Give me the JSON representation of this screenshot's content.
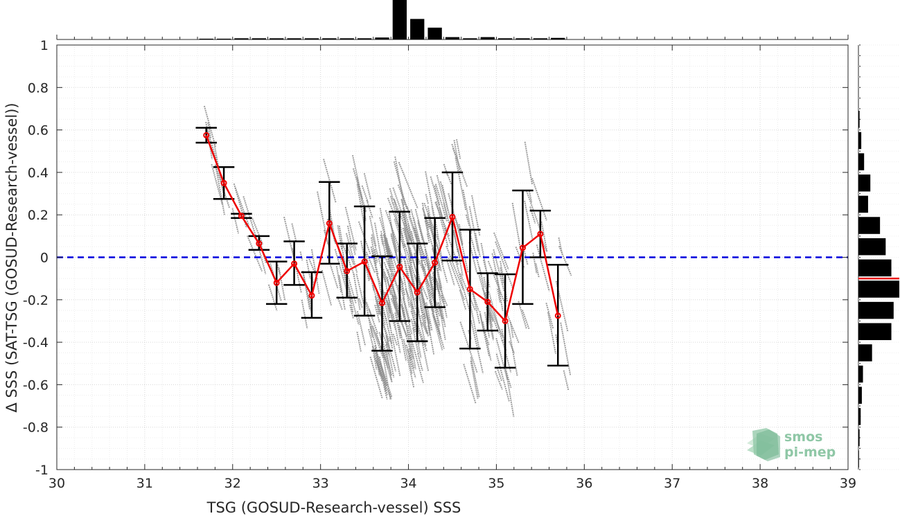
{
  "chart_data": {
    "type": "scatter",
    "title": "",
    "xlabel": "TSG (GOSUD-Research-vessel) SSS",
    "ylabel": "Δ SSS (SAT-TSG (GOSUD-Research-vessel))",
    "xlim": [
      30,
      39
    ],
    "ylim": [
      -1,
      1
    ],
    "xticks": [
      30,
      31,
      32,
      33,
      34,
      35,
      36,
      37,
      38,
      39
    ],
    "yticks": [
      -1,
      -0.8,
      -0.6,
      -0.4,
      -0.2,
      0,
      0.2,
      0.4,
      0.6,
      0.8,
      1
    ],
    "grid": true,
    "reference_line": {
      "y": 0,
      "color": "#0000dd",
      "style": "dashed"
    },
    "binned_mean": {
      "color": "#ee0000",
      "x": [
        31.7,
        31.9,
        32.1,
        32.3,
        32.5,
        32.7,
        32.9,
        33.1,
        33.3,
        33.5,
        33.7,
        33.9,
        34.1,
        34.3,
        34.5,
        34.7,
        34.9,
        35.1,
        35.3,
        35.5,
        35.7
      ],
      "y": [
        0.575,
        0.35,
        0.195,
        0.065,
        -0.12,
        -0.03,
        -0.18,
        0.16,
        -0.065,
        -0.02,
        -0.215,
        -0.045,
        -0.165,
        -0.025,
        0.19,
        -0.15,
        -0.21,
        -0.3,
        0.045,
        0.11,
        -0.275
      ],
      "lower": [
        0.54,
        0.275,
        0.185,
        0.035,
        -0.22,
        -0.13,
        -0.285,
        -0.03,
        -0.19,
        -0.275,
        -0.44,
        -0.3,
        -0.395,
        -0.235,
        -0.015,
        -0.43,
        -0.345,
        -0.52,
        -0.22,
        0.0,
        -0.51
      ],
      "upper": [
        0.61,
        0.425,
        0.205,
        0.1,
        -0.02,
        0.075,
        -0.07,
        0.355,
        0.065,
        0.24,
        0.005,
        0.215,
        0.065,
        0.185,
        0.4,
        0.13,
        -0.075,
        -0.08,
        0.315,
        0.22,
        -0.035
      ]
    },
    "scatter_color": "#8c8c8c",
    "top_histogram": {
      "bin_centers": [
        30.1,
        30.3,
        30.5,
        30.7,
        30.9,
        31.1,
        31.3,
        31.5,
        31.7,
        31.9,
        32.1,
        32.3,
        32.5,
        32.7,
        32.9,
        33.1,
        33.3,
        33.5,
        33.7,
        33.9,
        34.1,
        34.3,
        34.5,
        34.7,
        34.9,
        35.1,
        35.3,
        35.5,
        35.7
      ],
      "counts": [
        0,
        0,
        0,
        0,
        0,
        0,
        0,
        0,
        2,
        2,
        3,
        3,
        3,
        3,
        3,
        3,
        3,
        3,
        5,
        100,
        52,
        30,
        6,
        3,
        6,
        3,
        3,
        3,
        4
      ]
    },
    "right_histogram": {
      "bin_centers": [
        -0.95,
        -0.85,
        -0.75,
        -0.65,
        -0.55,
        -0.45,
        -0.35,
        -0.25,
        -0.15,
        -0.05,
        0.05,
        0.15,
        0.25,
        0.35,
        0.45,
        0.55,
        0.65
      ],
      "counts": [
        1,
        2,
        4,
        6,
        8,
        24,
        58,
        62,
        72,
        58,
        48,
        38,
        17,
        21,
        10,
        5,
        2
      ],
      "mean_line": -0.1,
      "mean_color": "#ee0000"
    }
  },
  "logo": {
    "line1": "smos",
    "line2": "pi-mep",
    "color": "#8fc7a6"
  }
}
